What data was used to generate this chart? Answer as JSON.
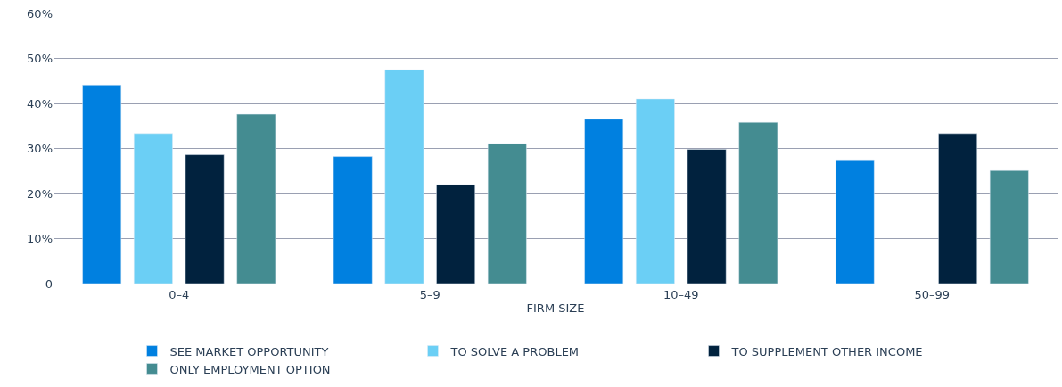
{
  "chart_data": {
    "type": "bar",
    "xlabel": "FIRM SIZE",
    "categories": [
      "0–4",
      "5–9",
      "10–49",
      "50–99"
    ],
    "series": [
      {
        "name": "SEE MARKET OPPORTUNITY",
        "color": "#0080e0",
        "values": [
          44.1,
          28.2,
          36.5,
          27.5
        ]
      },
      {
        "name": "TO SOLVE A PROBLEM",
        "color": "#6bcff5",
        "values": [
          33.3,
          47.5,
          41.0,
          null
        ]
      },
      {
        "name": "TO SUPPLEMENT OTHER INCOME",
        "color": "#01223e",
        "values": [
          28.6,
          22.0,
          29.8,
          33.3
        ]
      },
      {
        "name": "ONLY EMPLOYMENT OPTION",
        "color": "#448c91",
        "values": [
          37.6,
          31.1,
          35.8,
          25.1
        ]
      }
    ],
    "ylim": [
      0,
      60
    ],
    "yticks": [
      0,
      {
        "value": 10,
        "label": "10%"
      },
      {
        "value": 20,
        "label": "20%"
      },
      {
        "value": 30,
        "label": "30%"
      },
      {
        "value": 40,
        "label": "40%"
      },
      {
        "value": 50,
        "label": "50%"
      },
      {
        "value": 60,
        "label": "60%"
      }
    ],
    "grid": "y",
    "legend": "bottom"
  }
}
